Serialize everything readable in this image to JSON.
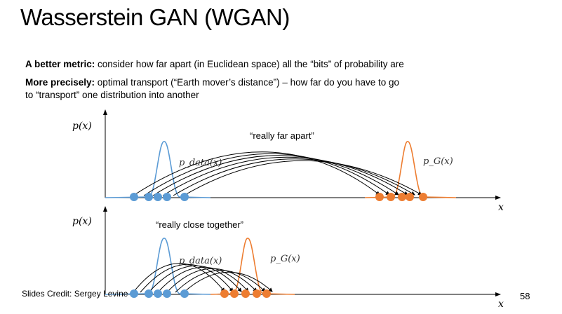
{
  "slide": {
    "title": "Wasserstein GAN (WGAN)",
    "line1_bold": "A better metric:",
    "line1_text": " consider how far apart (in Euclidean space) all the “bits” of probability are",
    "line2_bold": "More precisely:",
    "line2_text": " optimal transport (“Earth mover’s distance”) – how far do you have to go",
    "line3_text": "to “transport” one distribution into another",
    "credit": "Slides Credit: Sergey Levine",
    "page_number": "58"
  },
  "diagram": {
    "top": {
      "y_label": "p(x)",
      "x_label": "x",
      "annotation": "“really far apart”",
      "data_label": "p_data(x)",
      "model_label": "p_G(x)"
    },
    "bottom": {
      "y_label": "p(x)",
      "x_label": "x",
      "annotation": "“really close together”",
      "data_label": "p_data(x)",
      "model_label": "p_G(x)"
    },
    "colors": {
      "data": "#5b9bd5",
      "model": "#ed7d31",
      "arrows": "#000000"
    }
  }
}
